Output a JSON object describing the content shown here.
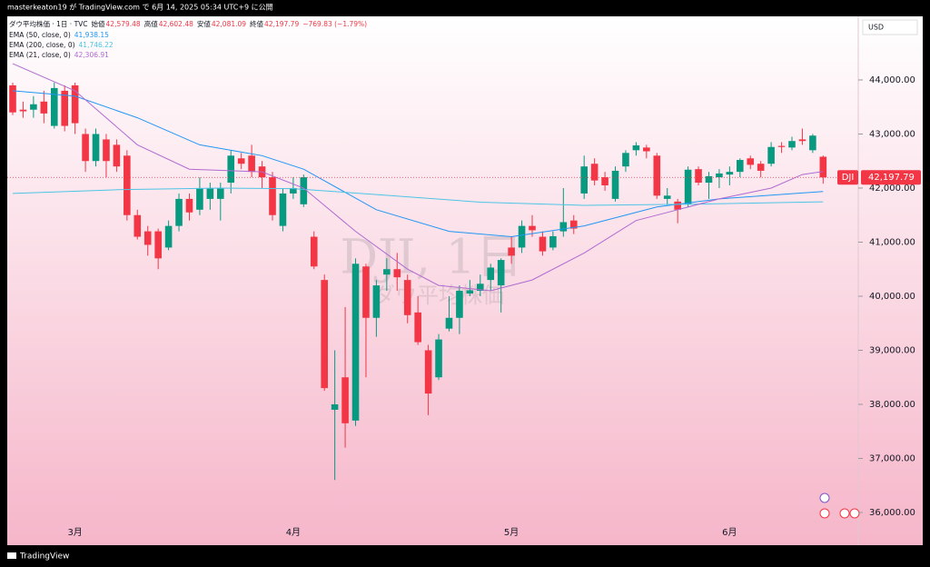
{
  "header": {
    "text": "masterkeaton19 が TradingView.com で 6月 14, 2025 05:34 UTC+9 に公開"
  },
  "footer": {
    "brand": "TradingView"
  },
  "chart_data": {
    "type": "candlestick",
    "legend": {
      "symbol": "ダウ平均株価 · 1日 · TVC",
      "open_label": "始値",
      "open": "42,579.48",
      "high_label": "高値",
      "high": "42,602.48",
      "low_label": "安値",
      "low": "42,081.09",
      "close_label": "終値",
      "close": "42,197.79",
      "change": "−769.83 (−1.79%)"
    },
    "currency": "USD",
    "watermark": {
      "symbol": "DJI, 1日",
      "name": "ダウ平均株価"
    },
    "price_tag": "42,197.79",
    "symbol_tag": "DJI",
    "up_color": "#089981",
    "down_color": "#f23645",
    "categories": [
      null,
      null,
      null,
      null,
      null,
      null,
      "3月",
      null,
      null,
      null,
      null,
      null,
      null,
      null,
      null,
      null,
      null,
      null,
      null,
      null,
      null,
      null,
      null,
      null,
      null,
      null,
      null,
      "4月",
      null,
      null,
      null,
      null,
      null,
      null,
      null,
      null,
      null,
      null,
      null,
      null,
      null,
      null,
      null,
      null,
      null,
      null,
      null,
      null,
      "5月",
      null,
      null,
      null,
      null,
      null,
      null,
      null,
      null,
      null,
      null,
      null,
      null,
      null,
      null,
      null,
      null,
      null,
      null,
      null,
      null,
      "6月",
      null,
      null,
      null,
      null,
      null,
      null,
      null,
      null,
      null
    ],
    "open": [
      43900,
      43450,
      43450,
      43600,
      43150,
      43800,
      43900,
      43000,
      42500,
      42900,
      42800,
      42600,
      41500,
      41200,
      41200,
      40900,
      41300,
      41800,
      41600,
      41800,
      41800,
      42100,
      42550,
      42600,
      42400,
      42200,
      41300,
      41900,
      41700,
      41100,
      40300,
      37900,
      38500,
      37700,
      40550,
      39600,
      40400,
      40500,
      40300,
      39700,
      39000,
      38500,
      39400,
      39600,
      40050,
      40100,
      40300,
      40200,
      40900,
      40900,
      41300,
      41100,
      40900,
      41200,
      41400,
      41900,
      42450,
      42200,
      41800,
      42400,
      42700,
      42750,
      42600,
      41800,
      41750,
      41700,
      42350,
      42100,
      42200,
      42250,
      42300,
      42550,
      42450,
      42450,
      42780,
      42750,
      42900,
      42700,
      42579.48
    ],
    "high": [
      43950,
      43600,
      43700,
      43800,
      43950,
      43900,
      43950,
      43100,
      43100,
      43000,
      42900,
      42700,
      41600,
      41300,
      41250,
      41400,
      41900,
      41900,
      42200,
      42100,
      42100,
      42700,
      42650,
      42800,
      42500,
      42300,
      42000,
      42200,
      42250,
      41200,
      40400,
      39000,
      39800,
      40700,
      40600,
      40300,
      40700,
      40800,
      40400,
      40000,
      39100,
      39300,
      40000,
      40200,
      40300,
      40400,
      40600,
      40700,
      41100,
      41400,
      41500,
      41200,
      41200,
      42000,
      41500,
      42600,
      42550,
      42300,
      42400,
      42700,
      42850,
      42800,
      42650,
      42000,
      41800,
      42400,
      42400,
      42300,
      42350,
      42400,
      42550,
      42600,
      42500,
      42850,
      42850,
      42950,
      43100,
      43000,
      42602.48
    ],
    "low": [
      43350,
      43300,
      43300,
      43200,
      43100,
      43050,
      43000,
      42300,
      42400,
      42200,
      42300,
      41400,
      41050,
      40750,
      40500,
      40850,
      41200,
      41400,
      41500,
      41600,
      41400,
      41900,
      42350,
      42200,
      42000,
      41400,
      41200,
      41800,
      41650,
      40500,
      38250,
      36600,
      37200,
      37600,
      38500,
      39250,
      40100,
      40100,
      39500,
      39100,
      37800,
      38450,
      39350,
      39300,
      40000,
      40000,
      40100,
      39700,
      40600,
      40800,
      41100,
      40750,
      40850,
      41100,
      41150,
      41800,
      42050,
      41950,
      41750,
      42300,
      42600,
      42550,
      41800,
      41700,
      41350,
      41650,
      42050,
      41800,
      42000,
      42050,
      42200,
      42350,
      42200,
      42400,
      42650,
      42700,
      42800,
      42650,
      42081.09
    ],
    "close": [
      43400,
      43420,
      43550,
      43380,
      43850,
      43150,
      43200,
      42500,
      43000,
      42500,
      42400,
      41500,
      41100,
      40950,
      40700,
      41300,
      41800,
      41550,
      42000,
      42000,
      42000,
      42600,
      42450,
      42300,
      42200,
      41500,
      41900,
      42000,
      42200,
      40550,
      38300,
      38000,
      37650,
      40600,
      39600,
      40200,
      40500,
      40350,
      39650,
      39150,
      38200,
      39200,
      39600,
      40100,
      40110,
      40230,
      40530,
      40670,
      40750,
      41300,
      41220,
      40830,
      41110,
      41370,
      41250,
      42400,
      42140,
      42050,
      42320,
      42650,
      42790,
      42680,
      41860,
      41860,
      41600,
      42340,
      42100,
      42220,
      42270,
      42300,
      42520,
      42430,
      42320,
      42760,
      42760,
      42870,
      42870,
      42970,
      42197.79
    ],
    "series": [
      {
        "name": "EMA (50, close, 0)",
        "value_label": "41,938.15",
        "color": "#2196f3",
        "x": [
          0,
          6,
          12,
          18,
          24,
          28,
          35,
          42,
          48,
          55,
          62,
          68,
          78
        ],
        "values": [
          43800,
          43700,
          43300,
          42800,
          42600,
          42350,
          41600,
          41200,
          41100,
          41300,
          41650,
          41800,
          41938.15
        ]
      },
      {
        "name": "EMA (200, close, 0)",
        "value_label": "41,746.22",
        "color": "#4dc4e6",
        "x": [
          0,
          10,
          20,
          27,
          35,
          45,
          55,
          65,
          78
        ],
        "values": [
          41900,
          41970,
          42000,
          41990,
          41880,
          41740,
          41680,
          41700,
          41746.22
        ]
      },
      {
        "name": "EMA (21, close, 0)",
        "value_label": "42,306.91",
        "color": "#b06ad0",
        "x": [
          0,
          6,
          12,
          17,
          24,
          28,
          33,
          38,
          41,
          46,
          50,
          55,
          60,
          63,
          68,
          73,
          76,
          78
        ],
        "values": [
          44300,
          43800,
          42800,
          42350,
          42300,
          42000,
          41200,
          40500,
          40200,
          40100,
          40300,
          40800,
          41400,
          41550,
          41800,
          42000,
          42250,
          42306.91
        ]
      }
    ],
    "ylim": [
      35395,
      45176
    ],
    "yticks": [
      {
        "value": 36000,
        "label": "36,000.00"
      },
      {
        "value": 37000,
        "label": "37,000.00"
      },
      {
        "value": 38000,
        "label": "38,000.00"
      },
      {
        "value": 39000,
        "label": "39,000.00"
      },
      {
        "value": 40000,
        "label": "40,000.00"
      },
      {
        "value": 41000,
        "label": "41,000.00"
      },
      {
        "value": 42000,
        "label": "42,000.00"
      },
      {
        "value": 43000,
        "label": "43,000.00"
      },
      {
        "value": 44000,
        "label": "44,000.00"
      }
    ]
  }
}
